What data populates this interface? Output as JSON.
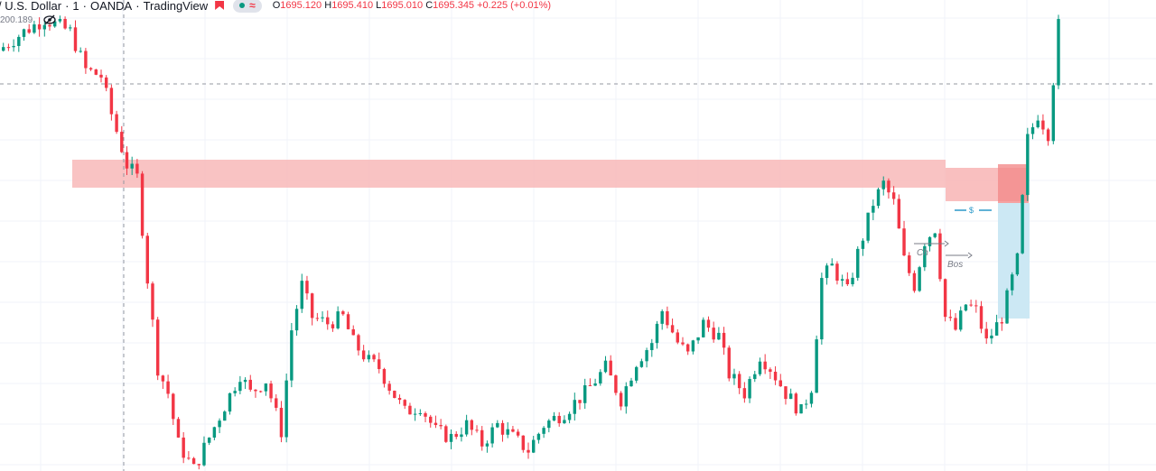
{
  "legend": {
    "symbol": "/ U.S. Dollar",
    "interval": "1",
    "exchange": "OANDA",
    "brand": "TradingView",
    "ohlc": {
      "o_label": "O",
      "o": "1695.120",
      "h_label": "H",
      "h": "1695.410",
      "l_label": "L",
      "l": "1695.010",
      "c_label": "C",
      "c": "1695.345",
      "change": "+0.225 (+0.01%)"
    },
    "volume_value": "200.189",
    "icons": [
      "flag-icon",
      "dot-icon",
      "wave-icon",
      "eye-off-icon"
    ]
  },
  "annotations": {
    "ch": "Ch",
    "bos": "Bos",
    "dollar": "$"
  },
  "colors": {
    "up": "#089981",
    "down": "#f23645",
    "zone": "#f8b8b8",
    "zone_dark": "#f28b8b",
    "blue_zone": "#cce8f4",
    "grid": "#f0f3fa",
    "dashed": "#9598a1"
  },
  "chart_data": {
    "type": "candlestick",
    "title": "",
    "xlabel": "",
    "ylabel": "",
    "last_close": 1695.345,
    "price_levels_estimated": {
      "top": 1695.4,
      "bottom": 1688.0
    },
    "path_estimated": [
      [
        0,
        1694.6
      ],
      [
        5,
        1694.9
      ],
      [
        9,
        1695.1
      ],
      [
        14,
        1694.9
      ],
      [
        17,
        1694.3
      ],
      [
        20,
        1694.2
      ],
      [
        22,
        1693.6
      ],
      [
        25,
        1692.8
      ],
      [
        27,
        1692.6
      ],
      [
        29,
        1691.0
      ],
      [
        31,
        1689.6
      ],
      [
        33,
        1689.2
      ],
      [
        35,
        1688.4
      ],
      [
        38,
        1688.0
      ],
      [
        41,
        1688.5
      ],
      [
        44,
        1689.0
      ],
      [
        47,
        1689.5
      ],
      [
        49,
        1689.2
      ],
      [
        52,
        1689.4
      ],
      [
        55,
        1688.6
      ],
      [
        57,
        1690.2
      ],
      [
        59,
        1690.9
      ],
      [
        61,
        1690.4
      ],
      [
        64,
        1690.3
      ],
      [
        67,
        1690.4
      ],
      [
        69,
        1690.0
      ],
      [
        72,
        1689.7
      ],
      [
        74,
        1689.6
      ],
      [
        76,
        1689.3
      ],
      [
        79,
        1688.9
      ],
      [
        82,
        1689.0
      ],
      [
        85,
        1688.6
      ],
      [
        88,
        1688.5
      ],
      [
        91,
        1688.7
      ],
      [
        94,
        1688.4
      ],
      [
        97,
        1688.7
      ],
      [
        100,
        1688.5
      ],
      [
        103,
        1688.3
      ],
      [
        106,
        1688.7
      ],
      [
        110,
        1688.9
      ],
      [
        114,
        1689.2
      ],
      [
        118,
        1689.6
      ],
      [
        121,
        1689.1
      ],
      [
        124,
        1689.7
      ],
      [
        127,
        1690.0
      ],
      [
        129,
        1690.5
      ],
      [
        132,
        1690.0
      ],
      [
        134,
        1689.8
      ],
      [
        137,
        1690.3
      ],
      [
        140,
        1690.1
      ],
      [
        142,
        1689.5
      ],
      [
        145,
        1689.2
      ],
      [
        148,
        1689.8
      ],
      [
        150,
        1689.6
      ],
      [
        153,
        1689.2
      ],
      [
        156,
        1688.9
      ],
      [
        158,
        1689.3
      ],
      [
        160,
        1691.0
      ],
      [
        162,
        1691.2
      ],
      [
        165,
        1690.8
      ],
      [
        167,
        1691.4
      ],
      [
        170,
        1692.2
      ],
      [
        172,
        1692.5
      ],
      [
        174,
        1692.2
      ],
      [
        176,
        1691.3
      ],
      [
        178,
        1690.9
      ],
      [
        180,
        1691.6
      ],
      [
        182,
        1691.8
      ],
      [
        184,
        1690.4
      ],
      [
        186,
        1690.2
      ],
      [
        188,
        1690.6
      ],
      [
        190,
        1690.5
      ],
      [
        192,
        1690.0
      ],
      [
        195,
        1690.4
      ],
      [
        198,
        1691.3
      ],
      [
        200,
        1693.2
      ],
      [
        202,
        1693.6
      ],
      [
        204,
        1693.3
      ],
      [
        206,
        1695.0
      ]
    ]
  }
}
